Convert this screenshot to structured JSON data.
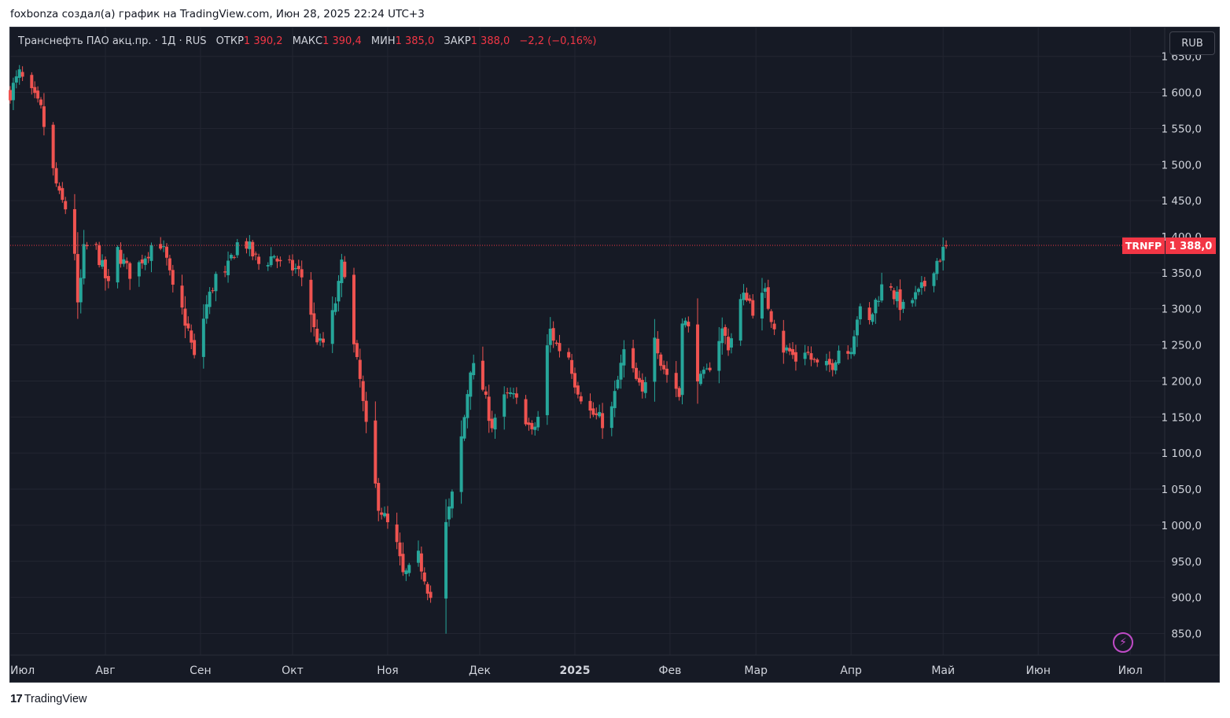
{
  "caption": "foxbonza создал(а) график на TradingView.com, Июн 28, 2025 22:24 UTC+3",
  "legend": {
    "instrument": "Транснефть ПАО акц.пр. · 1Д · RUS",
    "open_label": "ОТКР",
    "open_value": "1 390,2",
    "high_label": "МАКС",
    "high_value": "1 390,4",
    "low_label": "МИН",
    "low_value": "1 385,0",
    "close_label": "ЗАКР",
    "close_value": "1 388,0",
    "change": "−2,2 (−0,16%)"
  },
  "currency_button": "RUB",
  "price_tag": {
    "ticker": "TRNFP",
    "price": "1 388,0"
  },
  "footer_brand": "TradingView",
  "icons": {
    "logo": "tradingview-logo-icon",
    "snapshot": "lightning-icon"
  },
  "colors": {
    "background": "#161a25",
    "up": "#26a69a",
    "down": "#ef5350",
    "grid": "#232632",
    "text": "#d1d4dc",
    "last_price": "#f23645"
  },
  "chart_data": {
    "type": "candlestick",
    "symbol": "TRNFP",
    "interval": "1D",
    "currency": "RUB",
    "y_axis": {
      "ticks": [
        850,
        900,
        950,
        1000,
        1050,
        1100,
        1150,
        1200,
        1250,
        1300,
        1350,
        1400,
        1450,
        1500,
        1550,
        1600,
        1650
      ],
      "tick_labels": [
        "850,0",
        "900,0",
        "950,0",
        "1 000,0",
        "1 050,0",
        "1 100,0",
        "1 150,0",
        "1 200,0",
        "1 250,0",
        "1 300,0",
        "1 350,0",
        "1 400,0",
        "1 450,0",
        "1 500,0",
        "1 550,0",
        "1 600,0",
        "1 650,0"
      ],
      "range": [
        820,
        1690
      ]
    },
    "x_axis": {
      "labels": [
        {
          "text": "Июл",
          "date": "2024-07-01"
        },
        {
          "text": "Авг",
          "date": "2024-08-01"
        },
        {
          "text": "Сен",
          "date": "2024-09-01"
        },
        {
          "text": "Окт",
          "date": "2024-10-01"
        },
        {
          "text": "Ноя",
          "date": "2024-11-01"
        },
        {
          "text": "Дек",
          "date": "2024-12-01"
        },
        {
          "text": "2025",
          "date": "2025-01-01",
          "bold": true
        },
        {
          "text": "Фев",
          "date": "2025-02-01"
        },
        {
          "text": "Мар",
          "date": "2025-03-01"
        },
        {
          "text": "Апр",
          "date": "2025-04-01"
        },
        {
          "text": "Май",
          "date": "2025-05-01"
        },
        {
          "text": "Июн",
          "date": "2025-06-01"
        },
        {
          "text": "Июл",
          "date": "2025-07-01"
        }
      ]
    },
    "last_price": 1388.0,
    "grid": true,
    "start_date": "2024-07-01",
    "weekday_dates_gaps": [
      {
        "from": "2024-11-15",
        "to": "2024-11-20"
      }
    ],
    "close_path": [
      [
        0,
        1600
      ],
      [
        3,
        1625
      ],
      [
        5,
        1610
      ],
      [
        8,
        1590
      ],
      [
        10,
        1575
      ],
      [
        14,
        1490
      ],
      [
        16,
        1455
      ],
      [
        18,
        1440
      ],
      [
        19,
        1410
      ],
      [
        21,
        1380
      ],
      [
        22,
        1300
      ],
      [
        24,
        1380
      ],
      [
        27,
        1395
      ],
      [
        29,
        1370
      ],
      [
        32,
        1330
      ],
      [
        35,
        1380
      ],
      [
        38,
        1355
      ],
      [
        40,
        1345
      ],
      [
        43,
        1370
      ],
      [
        45,
        1380
      ],
      [
        48,
        1405
      ],
      [
        51,
        1365
      ],
      [
        53,
        1325
      ],
      [
        55,
        1310
      ],
      [
        58,
        1270
      ],
      [
        60,
        1230
      ],
      [
        62,
        1270
      ],
      [
        64,
        1305
      ],
      [
        67,
        1345
      ],
      [
        69,
        1330
      ],
      [
        72,
        1370
      ],
      [
        75,
        1400
      ],
      [
        77,
        1390
      ],
      [
        79,
        1375
      ],
      [
        81,
        1362
      ],
      [
        84,
        1368
      ],
      [
        86,
        1375
      ],
      [
        88,
        1360
      ],
      [
        90,
        1360
      ],
      [
        93,
        1355
      ],
      [
        95,
        1345
      ],
      [
        97,
        1320
      ],
      [
        99,
        1270
      ],
      [
        101,
        1250
      ],
      [
        103,
        1255
      ],
      [
        105,
        1290
      ],
      [
        107,
        1330
      ],
      [
        108,
        1360
      ],
      [
        110,
        1350
      ],
      [
        110.01,
        1335
      ],
      [
        111,
        1270
      ],
      [
        114,
        1200
      ],
      [
        117,
        1100
      ],
      [
        120,
        1030
      ],
      [
        123,
        1000
      ],
      [
        126,
        970
      ],
      [
        128,
        930
      ],
      [
        130,
        935
      ],
      [
        133,
        955
      ],
      [
        135,
        930
      ],
      [
        137,
        900
      ],
      [
        140,
        925
      ],
      [
        142,
        1000
      ],
      [
        145,
        1060
      ],
      [
        148,
        1150
      ],
      [
        150,
        1220
      ],
      [
        153,
        1210
      ],
      [
        155,
        1170
      ],
      [
        157,
        1140
      ],
      [
        160,
        1170
      ],
      [
        163,
        1180
      ],
      [
        165,
        1170
      ],
      [
        168,
        1150
      ],
      [
        170,
        1125
      ],
      [
        172,
        1150
      ],
      [
        174,
        1220
      ],
      [
        176,
        1270
      ],
      [
        178,
        1250
      ],
      [
        180,
        1240
      ],
      [
        182,
        1235
      ],
      [
        184,
        1200
      ],
      [
        186,
        1180
      ],
      [
        188,
        1160
      ],
      [
        191,
        1150
      ],
      [
        194,
        1140
      ],
      [
        196,
        1160
      ],
      [
        198,
        1200
      ],
      [
        200,
        1240
      ],
      [
        202,
        1220
      ],
      [
        204,
        1200
      ],
      [
        206,
        1180
      ],
      [
        208,
        1230
      ],
      [
        210,
        1270
      ],
      [
        212,
        1225
      ],
      [
        214,
        1210
      ],
      [
        216,
        1200
      ],
      [
        218,
        1180
      ],
      [
        219,
        1290
      ],
      [
        221,
        1270
      ],
      [
        223,
        1220
      ],
      [
        225,
        1200
      ],
      [
        227,
        1210
      ],
      [
        230,
        1250
      ],
      [
        232,
        1270
      ],
      [
        234,
        1250
      ],
      [
        236,
        1270
      ],
      [
        238,
        1310
      ],
      [
        240,
        1320
      ],
      [
        242,
        1300
      ],
      [
        244,
        1310
      ],
      [
        246,
        1320
      ],
      [
        248,
        1290
      ],
      [
        250,
        1270
      ],
      [
        252,
        1245
      ],
      [
        254,
        1240
      ],
      [
        256,
        1230
      ],
      [
        259,
        1245
      ],
      [
        261,
        1230
      ],
      [
        263,
        1220
      ],
      [
        265,
        1215
      ],
      [
        268,
        1225
      ],
      [
        270,
        1245
      ],
      [
        272,
        1230
      ],
      [
        274,
        1250
      ],
      [
        276,
        1290
      ],
      [
        278,
        1300
      ],
      [
        280,
        1280
      ],
      [
        282,
        1310
      ],
      [
        284,
        1330
      ],
      [
        286,
        1350
      ],
      [
        288,
        1320
      ],
      [
        291,
        1300
      ],
      [
        293,
        1310
      ],
      [
        296,
        1320
      ],
      [
        299,
        1340
      ],
      [
        301,
        1360
      ],
      [
        304,
        1380
      ],
      [
        306,
        1388
      ]
    ]
  }
}
